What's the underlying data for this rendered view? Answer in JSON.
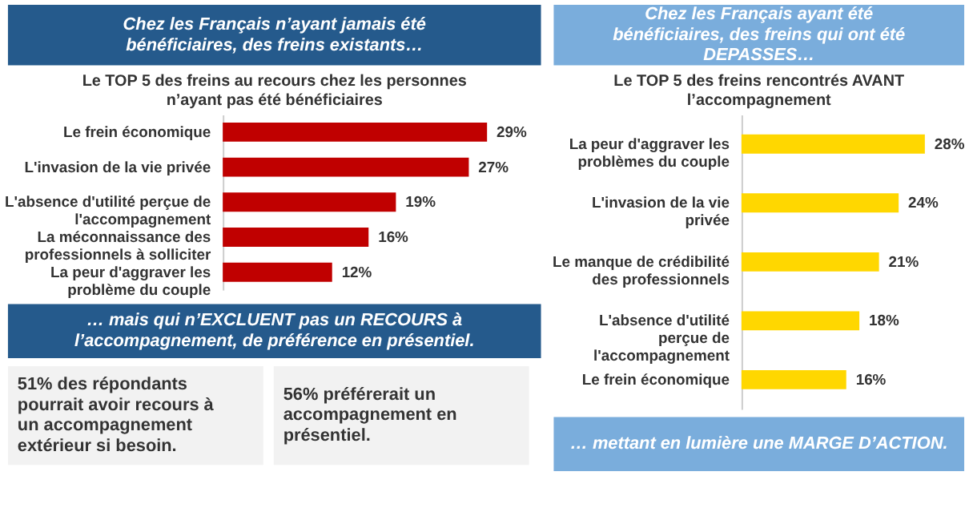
{
  "chart_data": [
    {
      "type": "bar",
      "orientation": "horizontal",
      "title": "Chez les Français n’ayant jamais été bénéficiaires, des freins existants…",
      "subtitle": "Le TOP 5 des freins au recours chez les personnes n’ayant pas été bénéficiaires",
      "categories": [
        "Le frein économique",
        "L'invasion de la vie privée",
        "L'absence d'utilité perçue de l'accompagnement",
        "La méconnaissance des professionnels à solliciter",
        "La peur d'aggraver les problème du couple"
      ],
      "values": [
        29,
        27,
        19,
        16,
        12
      ],
      "value_labels": [
        "29%",
        "27%",
        "19%",
        "16%",
        "12%"
      ],
      "color": "#c00000",
      "annotations": [
        "… mais qui n’EXCLUENT pas un RECOURS à l’accompagnement, de préférence en présentiel.",
        "51% des répondants pourrait avoir recours à un accompagnement extérieur si besoin.",
        "56% préférerait un accompagnement en présentiel."
      ]
    },
    {
      "type": "bar",
      "orientation": "horizontal",
      "title": "Chez les Français ayant été bénéficiaires, des freins qui ont été DEPASSES…",
      "subtitle": "Le TOP 5 des freins rencontrés AVANT l’accompagnement",
      "categories": [
        "La peur d'aggraver les problèmes du couple",
        "L'invasion de la vie privée",
        "Le manque de crédibilité des professionnels",
        "L'absence d'utilité perçue de l'accompagnement",
        "Le frein économique"
      ],
      "values": [
        28,
        24,
        21,
        18,
        16
      ],
      "value_labels": [
        "28%",
        "24%",
        "21%",
        "18%",
        "16%"
      ],
      "color": "#ffd700",
      "annotations": [
        "… mettant en lumière une MARGE D’ACTION."
      ]
    }
  ]
}
